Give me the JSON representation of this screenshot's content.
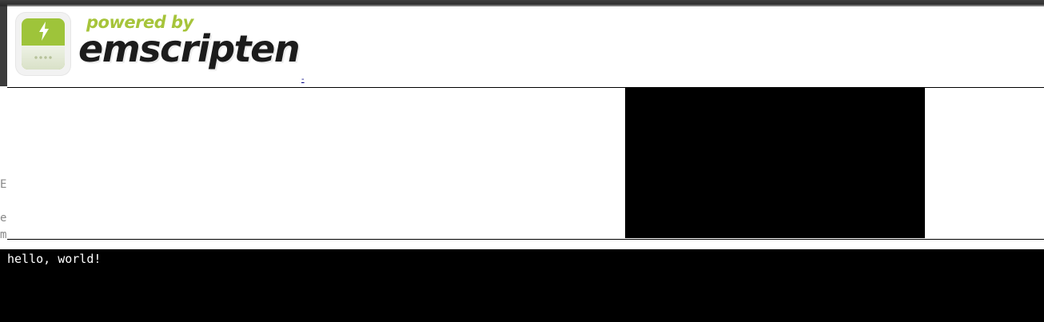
{
  "logo": {
    "tagline": "powered by",
    "brand": "emscripten",
    "icon": "lightning-bolt-icon"
  },
  "header_link": {
    "text": "-"
  },
  "edge_text": {
    "lines": [
      "E",
      "",
      "e",
      "m"
    ]
  },
  "console": {
    "output": "hello, world!"
  },
  "colors": {
    "brand_green": "#a6c43a",
    "brand_text": "#1c1c1c",
    "canvas": "#000000",
    "console_background": "#000000",
    "console_text": "#ffffff"
  }
}
